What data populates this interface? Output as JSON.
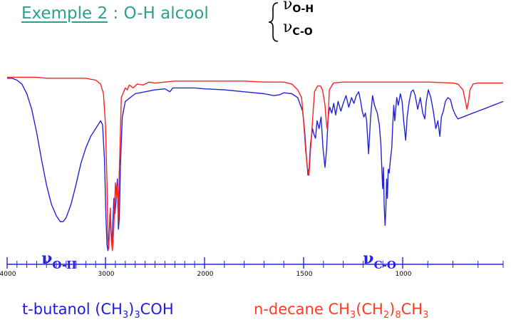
{
  "title": {
    "prefix": "Exemple 2",
    "rest": " : O-H alcool",
    "brace_lines": [
      {
        "symbol": "ν",
        "sub": "O-H"
      },
      {
        "symbol": "ν",
        "sub": "C-O"
      }
    ]
  },
  "chart_data": {
    "type": "line",
    "title": "",
    "xlabel": "",
    "ylabel": "",
    "xlim": [
      4000,
      600
    ],
    "ylim": [
      0,
      100
    ],
    "x_reversed": true,
    "ticks": [
      4000,
      3000,
      2000,
      1500,
      1000
    ],
    "grid": false,
    "annotations": [
      {
        "symbol": "ν",
        "sub": "O-H",
        "x": 3550
      },
      {
        "symbol": "ν",
        "sub": "C-O",
        "x": 1150
      }
    ],
    "series": [
      {
        "name": "t-butanol (CH3)3COH",
        "color": "#2323dd",
        "points": [
          [
            4000,
            92
          ],
          [
            3950,
            92
          ],
          [
            3900,
            91
          ],
          [
            3850,
            89
          ],
          [
            3800,
            84
          ],
          [
            3750,
            76
          ],
          [
            3700,
            64
          ],
          [
            3650,
            50
          ],
          [
            3600,
            37
          ],
          [
            3550,
            27
          ],
          [
            3500,
            21
          ],
          [
            3460,
            18
          ],
          [
            3430,
            18
          ],
          [
            3400,
            20
          ],
          [
            3350,
            27
          ],
          [
            3300,
            37
          ],
          [
            3250,
            48
          ],
          [
            3200,
            56
          ],
          [
            3150,
            62
          ],
          [
            3100,
            66
          ],
          [
            3050,
            70
          ],
          [
            3030,
            68
          ],
          [
            3010,
            50
          ],
          [
            2995,
            20
          ],
          [
            2985,
            6
          ],
          [
            2975,
            3
          ],
          [
            2965,
            10
          ],
          [
            2955,
            22
          ],
          [
            2945,
            14
          ],
          [
            2935,
            7
          ],
          [
            2925,
            18
          ],
          [
            2915,
            30
          ],
          [
            2905,
            22
          ],
          [
            2895,
            28
          ],
          [
            2880,
            40
          ],
          [
            2870,
            14
          ],
          [
            2860,
            20
          ],
          [
            2850,
            45
          ],
          [
            2830,
            72
          ],
          [
            2800,
            80
          ],
          [
            2700,
            84
          ],
          [
            2600,
            85
          ],
          [
            2500,
            86
          ],
          [
            2400,
            86.5
          ],
          [
            2350,
            85
          ],
          [
            2320,
            87
          ],
          [
            2200,
            87
          ],
          [
            2100,
            87
          ],
          [
            2000,
            86.5
          ],
          [
            1900,
            86
          ],
          [
            1800,
            85
          ],
          [
            1700,
            84
          ],
          [
            1650,
            83
          ],
          [
            1620,
            83.5
          ],
          [
            1600,
            84.5
          ],
          [
            1560,
            84
          ],
          [
            1530,
            82
          ],
          [
            1505,
            75
          ],
          [
            1495,
            65
          ],
          [
            1485,
            50
          ],
          [
            1478,
            42
          ],
          [
            1472,
            46
          ],
          [
            1465,
            58
          ],
          [
            1455,
            66
          ],
          [
            1448,
            63
          ],
          [
            1440,
            61
          ],
          [
            1432,
            70
          ],
          [
            1422,
            66
          ],
          [
            1412,
            72
          ],
          [
            1402,
            56
          ],
          [
            1392,
            46
          ],
          [
            1384,
            55
          ],
          [
            1376,
            72
          ],
          [
            1368,
            77
          ],
          [
            1358,
            74
          ],
          [
            1348,
            79
          ],
          [
            1338,
            73
          ],
          [
            1326,
            80
          ],
          [
            1312,
            75
          ],
          [
            1300,
            79
          ],
          [
            1286,
            83
          ],
          [
            1272,
            77
          ],
          [
            1258,
            82
          ],
          [
            1246,
            79
          ],
          [
            1234,
            83
          ],
          [
            1222,
            85
          ],
          [
            1212,
            80
          ],
          [
            1204,
            75
          ],
          [
            1196,
            72
          ],
          [
            1188,
            74
          ],
          [
            1182,
            70
          ],
          [
            1172,
            53
          ],
          [
            1162,
            72
          ],
          [
            1152,
            83
          ],
          [
            1142,
            78
          ],
          [
            1128,
            74
          ],
          [
            1118,
            68
          ],
          [
            1110,
            58
          ],
          [
            1105,
            45
          ],
          [
            1101,
            35
          ],
          [
            1097,
            46
          ],
          [
            1093,
            26
          ],
          [
            1089,
            16
          ],
          [
            1085,
            24
          ],
          [
            1081,
            40
          ],
          [
            1077,
            30
          ],
          [
            1073,
            45
          ],
          [
            1068,
            43
          ],
          [
            1062,
            50
          ],
          [
            1055,
            56
          ],
          [
            1050,
            68
          ],
          [
            1045,
            78
          ],
          [
            1040,
            70
          ],
          [
            1030,
            82
          ],
          [
            1022,
            78
          ],
          [
            1012,
            84
          ],
          [
            1003,
            80
          ],
          [
            996,
            70
          ],
          [
            988,
            60
          ],
          [
            982,
            72
          ],
          [
            974,
            80
          ],
          [
            966,
            85
          ],
          [
            958,
            86
          ],
          [
            950,
            83
          ],
          [
            940,
            76
          ],
          [
            930,
            82
          ],
          [
            920,
            74
          ],
          [
            912,
            71
          ],
          [
            906,
            80
          ],
          [
            898,
            86
          ],
          [
            888,
            82
          ],
          [
            878,
            75
          ],
          [
            868,
            66
          ],
          [
            860,
            70
          ],
          [
            852,
            62
          ],
          [
            846,
            72
          ],
          [
            838,
            75
          ],
          [
            830,
            80
          ],
          [
            820,
            82
          ],
          [
            810,
            81
          ],
          [
            800,
            76
          ],
          [
            790,
            73
          ],
          [
            780,
            71
          ],
          [
            770,
            71.5
          ],
          [
            760,
            72
          ],
          [
            750,
            72.5
          ],
          [
            740,
            73
          ],
          [
            720,
            74
          ],
          [
            700,
            75
          ],
          [
            680,
            76
          ],
          [
            660,
            77
          ],
          [
            640,
            78
          ],
          [
            620,
            79
          ],
          [
            600,
            80
          ]
        ]
      },
      {
        "name": "n-decane CH3(CH2)8CH3",
        "color": "#ff2020",
        "points": [
          [
            4000,
            92.5
          ],
          [
            3900,
            92.5
          ],
          [
            3800,
            92.5
          ],
          [
            3700,
            92.5
          ],
          [
            3600,
            92
          ],
          [
            3500,
            92
          ],
          [
            3400,
            92
          ],
          [
            3300,
            92
          ],
          [
            3200,
            92
          ],
          [
            3100,
            91
          ],
          [
            3050,
            89
          ],
          [
            3020,
            84
          ],
          [
            3000,
            68
          ],
          [
            2985,
            38
          ],
          [
            2975,
            8
          ],
          [
            2968,
            4
          ],
          [
            2960,
            12
          ],
          [
            2950,
            25
          ],
          [
            2940,
            8
          ],
          [
            2930,
            3
          ],
          [
            2920,
            10
          ],
          [
            2912,
            20
          ],
          [
            2900,
            38
          ],
          [
            2890,
            30
          ],
          [
            2880,
            36
          ],
          [
            2870,
            18
          ],
          [
            2862,
            42
          ],
          [
            2850,
            62
          ],
          [
            2840,
            82
          ],
          [
            2800,
            87
          ],
          [
            2780,
            86
          ],
          [
            2760,
            88.5
          ],
          [
            2720,
            87
          ],
          [
            2680,
            89
          ],
          [
            2620,
            88.5
          ],
          [
            2560,
            90
          ],
          [
            2500,
            89.5
          ],
          [
            2400,
            90
          ],
          [
            2300,
            90.5
          ],
          [
            2200,
            90.5
          ],
          [
            2100,
            90.5
          ],
          [
            2000,
            90.5
          ],
          [
            1900,
            90.5
          ],
          [
            1800,
            90.5
          ],
          [
            1700,
            90
          ],
          [
            1600,
            90
          ],
          [
            1560,
            89
          ],
          [
            1530,
            86
          ],
          [
            1510,
            82
          ],
          [
            1500,
            70
          ],
          [
            1490,
            55
          ],
          [
            1480,
            45
          ],
          [
            1473,
            42
          ],
          [
            1465,
            55
          ],
          [
            1455,
            70
          ],
          [
            1445,
            85
          ],
          [
            1430,
            88
          ],
          [
            1415,
            88
          ],
          [
            1405,
            86
          ],
          [
            1398,
            82
          ],
          [
            1392,
            78
          ],
          [
            1386,
            70
          ],
          [
            1381,
            66
          ],
          [
            1376,
            72
          ],
          [
            1370,
            86
          ],
          [
            1350,
            89.5
          ],
          [
            1300,
            90
          ],
          [
            1200,
            90
          ],
          [
            1100,
            90
          ],
          [
            1000,
            90
          ],
          [
            900,
            90
          ],
          [
            800,
            89.5
          ],
          [
            780,
            89
          ],
          [
            760,
            86
          ],
          [
            750,
            80
          ],
          [
            744,
            76
          ],
          [
            738,
            80
          ],
          [
            732,
            86
          ],
          [
            720,
            89
          ],
          [
            700,
            89.5
          ],
          [
            650,
            89.5
          ],
          [
            600,
            89.5
          ]
        ]
      }
    ]
  },
  "legend": {
    "blue": {
      "prefix": "t-butanol (CH",
      "s1": "3",
      "mid": ")",
      "s2": "3",
      "suffix": "COH"
    },
    "red": {
      "prefix": "n-decane CH",
      "s1": "3",
      "mid1": "(CH",
      "s2": "2",
      "mid2": ")",
      "s3": "8",
      "mid3": "CH",
      "s4": "3"
    }
  }
}
